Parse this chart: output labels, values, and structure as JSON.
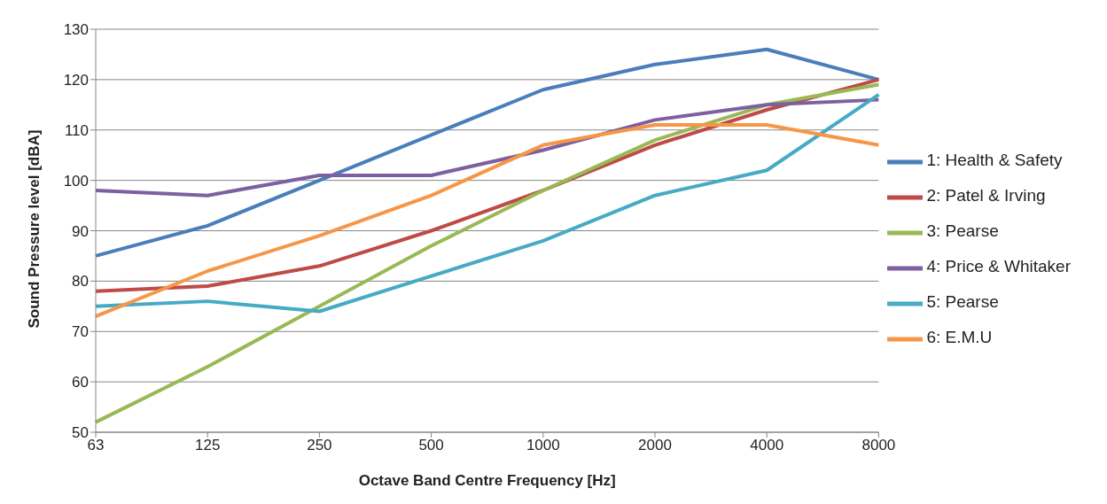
{
  "chart_data": {
    "type": "line",
    "xlabel": "Octave Band Centre Frequency [Hz]",
    "ylabel": "Sound Pressure level [dBA]",
    "categories": [
      "63",
      "125",
      "250",
      "500",
      "1000",
      "2000",
      "4000",
      "8000"
    ],
    "series": [
      {
        "name": "1: Health & Safety",
        "color": "#4a7ebb",
        "values": [
          85,
          91,
          100,
          109,
          118,
          123,
          126,
          120
        ]
      },
      {
        "name": "2: Patel & Irving",
        "color": "#be4b48",
        "values": [
          78,
          79,
          83,
          90,
          98,
          107,
          114,
          120
        ]
      },
      {
        "name": "3: Pearse",
        "color": "#98b954",
        "values": [
          52,
          63,
          75,
          87,
          98,
          108,
          115,
          119
        ]
      },
      {
        "name": "4: Price & Whitaker",
        "color": "#7d60a0",
        "values": [
          98,
          97,
          101,
          101,
          106,
          112,
          115,
          116
        ]
      },
      {
        "name": "5: Pearse",
        "color": "#46aac5",
        "values": [
          75,
          76,
          74,
          81,
          88,
          97,
          102,
          117
        ]
      },
      {
        "name": "6: E.M.U",
        "color": "#f79646",
        "values": [
          73,
          82,
          89,
          97,
          107,
          111,
          111,
          107
        ]
      }
    ],
    "ylim": [
      50,
      130
    ],
    "yticks": [
      50,
      60,
      70,
      80,
      90,
      100,
      110,
      120,
      130
    ],
    "grid": "y",
    "legend": "right",
    "marker": "none",
    "line_style": "solid"
  }
}
